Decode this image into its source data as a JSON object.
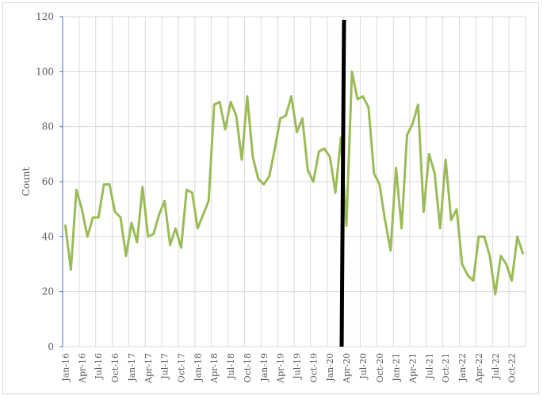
{
  "chart_data": {
    "type": "line",
    "title": "",
    "xlabel": "",
    "ylabel": "Count",
    "ylim": [
      0,
      120
    ],
    "yticks": [
      0,
      20,
      40,
      60,
      80,
      100,
      120
    ],
    "grid": true,
    "legend": "none",
    "tick_labels": [
      "Jan-16",
      "Apr-16",
      "Jul-16",
      "Oct-16",
      "Jan-17",
      "Apr-17",
      "Jul-17",
      "Oct-17",
      "Jan-18",
      "Apr-18",
      "Jul-18",
      "Oct-18",
      "Jan-19",
      "Apr-19",
      "Jul-19",
      "Oct-19",
      "Jan-20",
      "Apr-20",
      "Jul-20",
      "Oct-20",
      "Jan-21",
      "Apr-21",
      "Jul-21",
      "Oct-21",
      "Jan-22",
      "Apr-22",
      "Jul-22",
      "Oct-22"
    ],
    "x": [
      "Jan-16",
      "Feb-16",
      "Mar-16",
      "Apr-16",
      "May-16",
      "Jun-16",
      "Jul-16",
      "Aug-16",
      "Sep-16",
      "Oct-16",
      "Nov-16",
      "Dec-16",
      "Jan-17",
      "Feb-17",
      "Mar-17",
      "Apr-17",
      "May-17",
      "Jun-17",
      "Jul-17",
      "Aug-17",
      "Sep-17",
      "Oct-17",
      "Nov-17",
      "Dec-17",
      "Jan-18",
      "Feb-18",
      "Mar-18",
      "Apr-18",
      "May-18",
      "Jun-18",
      "Jul-18",
      "Aug-18",
      "Sep-18",
      "Oct-18",
      "Nov-18",
      "Dec-18",
      "Jan-19",
      "Feb-19",
      "Mar-19",
      "Apr-19",
      "May-19",
      "Jun-19",
      "Jul-19",
      "Aug-19",
      "Sep-19",
      "Oct-19",
      "Nov-19",
      "Dec-19",
      "Jan-20",
      "Feb-20",
      "Mar-20",
      "Apr-20",
      "May-20",
      "Jun-20",
      "Jul-20",
      "Aug-20",
      "Sep-20",
      "Oct-20",
      "Nov-20",
      "Dec-20",
      "Jan-21",
      "Feb-21",
      "Mar-21",
      "Apr-21",
      "May-21",
      "Jun-21",
      "Jul-21",
      "Aug-21",
      "Sep-21",
      "Oct-21",
      "Nov-21",
      "Dec-21",
      "Jan-22",
      "Feb-22",
      "Mar-22",
      "Apr-22",
      "May-22",
      "Jun-22",
      "Jul-22",
      "Aug-22",
      "Sep-22",
      "Oct-22",
      "Nov-22",
      "Dec-22"
    ],
    "series": [
      {
        "name": "Count",
        "color": "#9bbb59",
        "values": [
          44,
          28,
          57,
          50,
          40,
          47,
          47,
          59,
          59,
          49,
          47,
          33,
          45,
          38,
          58,
          40,
          41,
          48,
          53,
          37,
          43,
          36,
          57,
          56,
          43,
          48,
          53,
          88,
          89,
          79,
          89,
          84,
          68,
          91,
          69,
          61,
          59,
          62,
          72,
          83,
          84,
          91,
          78,
          83,
          64,
          60,
          71,
          72,
          69,
          56,
          76,
          44,
          100,
          90,
          91,
          87,
          63,
          59,
          46,
          35,
          65,
          43,
          77,
          81,
          88,
          49,
          70,
          63,
          43,
          68,
          46,
          50,
          30,
          26,
          24,
          40,
          40,
          33,
          19,
          33,
          30,
          24,
          40,
          34
        ]
      }
    ],
    "annotations": [
      {
        "type": "vertical-line",
        "color": "#000000",
        "position": "Apr-20",
        "description": "thick black vertical marker near Apr-20"
      }
    ]
  },
  "axis": {
    "y_title": "Count"
  }
}
